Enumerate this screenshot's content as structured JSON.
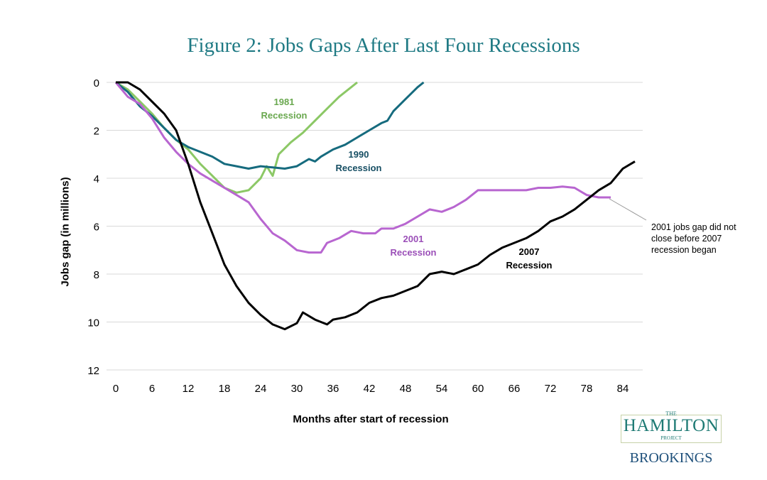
{
  "chart_data": {
    "type": "line",
    "title": "Figure 2: Jobs Gaps After Last Four Recessions",
    "xlabel": "Months after start of recession",
    "ylabel": "Jobs gap (in millions)",
    "xlim": [
      0,
      87
    ],
    "ylim": [
      0,
      12
    ],
    "y_inverted": true,
    "grid": true,
    "xticks": [
      "0",
      "6",
      "12",
      "18",
      "24",
      "30",
      "36",
      "42",
      "48",
      "54",
      "60",
      "66",
      "72",
      "78",
      "84"
    ],
    "yticks": [
      "0",
      "2",
      "4",
      "6",
      "8",
      "10",
      "12"
    ],
    "series": [
      {
        "name": "1981 Recession",
        "color": "#8cc866",
        "x": [
          0,
          2,
          4,
          6,
          8,
          10,
          12,
          14,
          16,
          18,
          20,
          22,
          24,
          25,
          26,
          27,
          29,
          31,
          33,
          35,
          37,
          39,
          40
        ],
        "y": [
          0,
          0.3,
          0.8,
          1.3,
          1.9,
          2.4,
          2.8,
          3.4,
          3.9,
          4.4,
          4.6,
          4.5,
          4.0,
          3.5,
          3.9,
          3.0,
          2.5,
          2.1,
          1.6,
          1.1,
          0.6,
          0.2,
          0
        ]
      },
      {
        "name": "1990 Recession",
        "color": "#166b7e",
        "x": [
          0,
          2,
          4,
          6,
          8,
          10,
          12,
          14,
          16,
          18,
          20,
          22,
          24,
          26,
          28,
          30,
          32,
          33,
          34,
          36,
          38,
          40,
          42,
          44,
          45,
          46,
          48,
          50,
          51
        ],
        "y": [
          0,
          0.4,
          1.0,
          1.4,
          1.9,
          2.4,
          2.7,
          2.9,
          3.1,
          3.4,
          3.5,
          3.6,
          3.5,
          3.55,
          3.6,
          3.5,
          3.2,
          3.3,
          3.1,
          2.8,
          2.6,
          2.3,
          2.0,
          1.7,
          1.6,
          1.2,
          0.7,
          0.2,
          0
        ]
      },
      {
        "name": "2001 Recession",
        "color": "#b866d0",
        "x": [
          0,
          2,
          4,
          6,
          8,
          10,
          12,
          14,
          16,
          18,
          20,
          22,
          24,
          26,
          28,
          30,
          32,
          34,
          35,
          37,
          39,
          41,
          43,
          44,
          46,
          48,
          50,
          52,
          54,
          56,
          58,
          60,
          62,
          64,
          66,
          68,
          70,
          72,
          74,
          76,
          78,
          80,
          82
        ],
        "y": [
          0,
          0.6,
          0.9,
          1.5,
          2.3,
          2.9,
          3.4,
          3.8,
          4.1,
          4.4,
          4.7,
          5.0,
          5.7,
          6.3,
          6.6,
          7.0,
          7.1,
          7.1,
          6.7,
          6.5,
          6.2,
          6.3,
          6.3,
          6.1,
          6.1,
          5.9,
          5.6,
          5.3,
          5.4,
          5.2,
          4.9,
          4.5,
          4.5,
          4.5,
          4.5,
          4.5,
          4.4,
          4.4,
          4.35,
          4.4,
          4.7,
          4.8,
          4.8
        ]
      },
      {
        "name": "2007 Recession",
        "color": "#000000",
        "x": [
          0,
          2,
          4,
          6,
          8,
          10,
          12,
          14,
          16,
          18,
          20,
          22,
          24,
          26,
          28,
          30,
          31,
          33,
          35,
          36,
          38,
          40,
          42,
          44,
          46,
          48,
          50,
          52,
          54,
          56,
          58,
          60,
          62,
          64,
          66,
          68,
          70,
          72,
          74,
          76,
          78,
          80,
          82,
          84,
          86
        ],
        "y": [
          0,
          0,
          0.3,
          0.8,
          1.3,
          2.0,
          3.4,
          5.0,
          6.3,
          7.6,
          8.5,
          9.2,
          9.7,
          10.1,
          10.3,
          10.05,
          9.6,
          9.9,
          10.1,
          9.9,
          9.8,
          9.6,
          9.2,
          9.0,
          8.9,
          8.7,
          8.5,
          8.0,
          7.9,
          8.0,
          7.8,
          7.6,
          7.2,
          6.9,
          6.7,
          6.5,
          6.2,
          5.8,
          5.6,
          5.3,
          4.9,
          4.5,
          4.2,
          3.6,
          3.3
        ]
      }
    ],
    "series_labels": [
      {
        "line1": "1981",
        "line2": "Recession"
      },
      {
        "line1": "1990",
        "line2": "Recession"
      },
      {
        "line1": "2001",
        "line2": "Recession"
      },
      {
        "line1": "2007",
        "line2": "Recession"
      }
    ],
    "annotation": "2001 jobs gap did not close before 2007 recession began"
  },
  "logo": {
    "the": "THE",
    "name": "HAMILTON",
    "project": "PROJECT",
    "org": "BROOKINGS"
  }
}
